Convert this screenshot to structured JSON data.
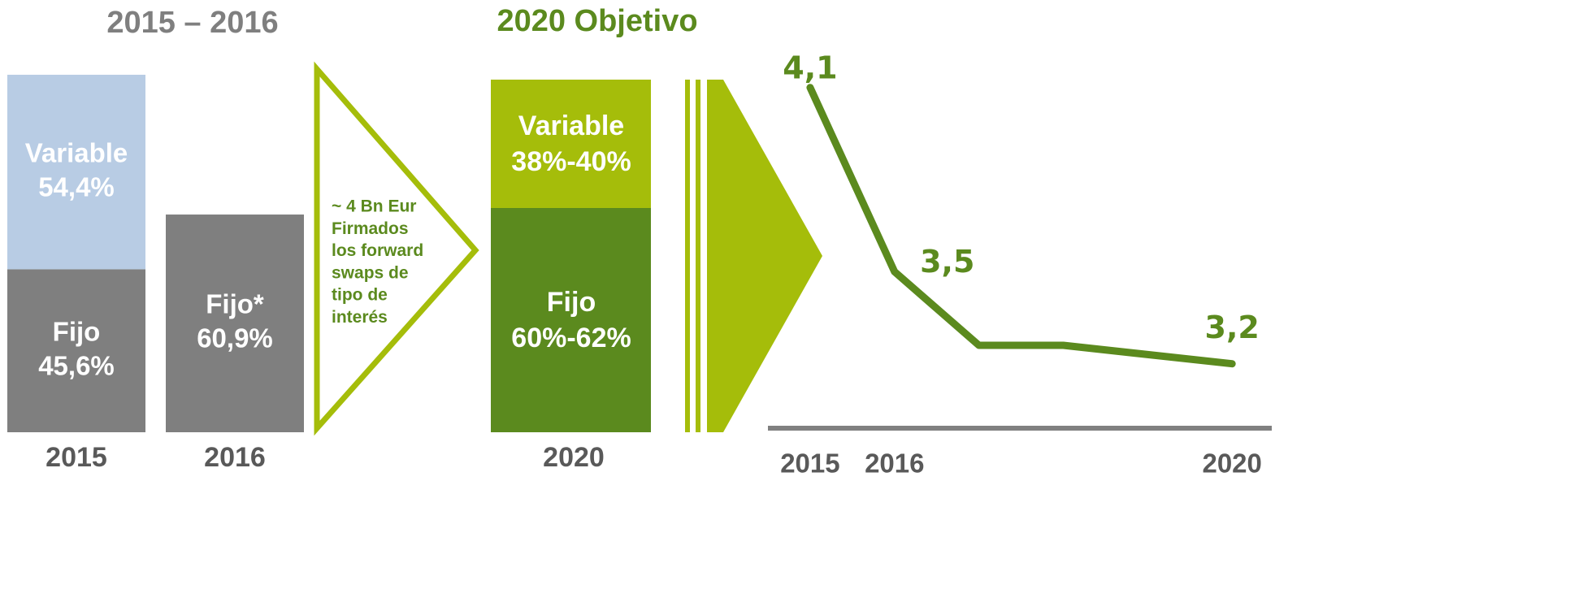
{
  "chart_data": [
    {
      "type": "bar",
      "title": "2015 – 2016",
      "categories": [
        "2015",
        "2016"
      ],
      "series": [
        {
          "name": "Fijo",
          "labels": [
            "Fijo",
            "Fijo*"
          ],
          "color": "#7f7f7f",
          "values": [
            45.6,
            60.9
          ],
          "value_labels": [
            "45,6%",
            "60,9%"
          ]
        },
        {
          "name": "Variable",
          "labels": [
            "Variable",
            null
          ],
          "color": "#b8cce4",
          "values": [
            54.4,
            null
          ],
          "value_labels": [
            "54,4%",
            null
          ]
        }
      ],
      "ylim": [
        0,
        100
      ]
    },
    {
      "type": "line",
      "x": [
        2015,
        2016,
        2017,
        2018,
        2019,
        2020
      ],
      "values": [
        4.1,
        3.5,
        3.26,
        3.26,
        3.23,
        3.2
      ],
      "value_labels": [
        "4,1",
        "3,5",
        null,
        null,
        null,
        "3,2"
      ],
      "color": "#5b8a1e",
      "xlim": [
        2014.5,
        2020.47
      ],
      "xticks": [
        2015,
        2016,
        2020
      ],
      "ylim": [
        2.99,
        4.2
      ]
    }
  ],
  "target": {
    "title": "2020 Objetivo",
    "category": "2020",
    "segments": [
      {
        "name": "Variable",
        "label": "38%-40%"
      },
      {
        "name": "Fijo",
        "label": "60%-62%"
      }
    ]
  },
  "note": [
    "~ 4 Bn Eur",
    "Firmados",
    "los forward",
    "swaps de",
    "tipo de",
    "interés"
  ]
}
